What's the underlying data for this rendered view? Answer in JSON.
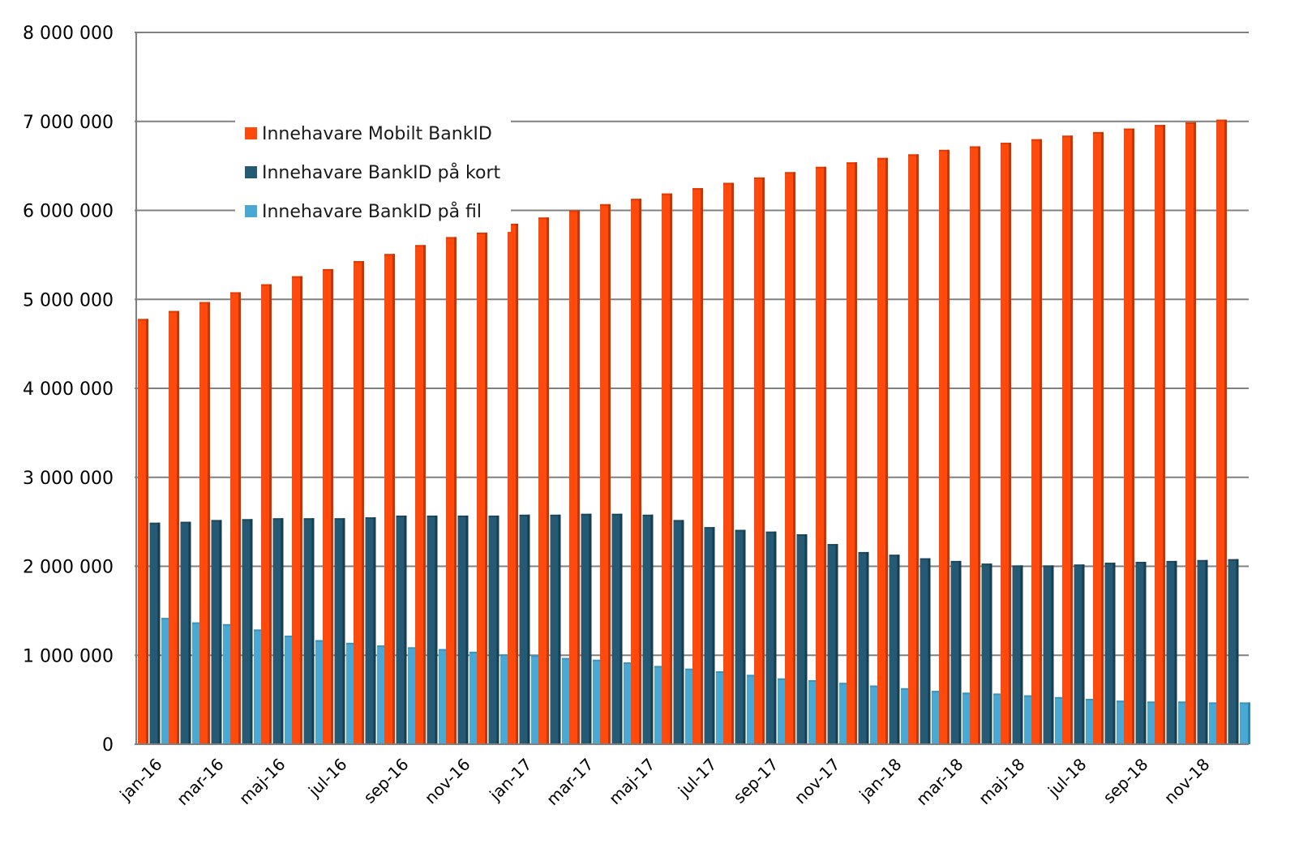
{
  "chart_data": {
    "type": "bar",
    "title": "",
    "xlabel": "",
    "ylabel": "",
    "ylim": [
      0,
      8000000
    ],
    "y_ticks": [
      "0",
      "1 000 000",
      "2 000 000",
      "3 000 000",
      "4 000 000",
      "5 000 000",
      "6 000 000",
      "7 000 000",
      "8 000 000"
    ],
    "y_tick_values": [
      0,
      1000000,
      2000000,
      3000000,
      4000000,
      5000000,
      6000000,
      7000000,
      8000000
    ],
    "grid": true,
    "legend_position": "top-left",
    "categories": [
      "jan-16",
      "feb-16",
      "mar-16",
      "apr-16",
      "maj-16",
      "jun-16",
      "jul-16",
      "aug-16",
      "sep-16",
      "okt-16",
      "nov-16",
      "dec-16",
      "jan-17",
      "feb-17",
      "mar-17",
      "apr-17",
      "maj-17",
      "jun-17",
      "jul-17",
      "aug-17",
      "sep-17",
      "okt-17",
      "nov-17",
      "dec-17",
      "jan-18",
      "feb-18",
      "mar-18",
      "apr-18",
      "maj-18",
      "jun-18",
      "jul-18",
      "aug-18",
      "sep-18",
      "okt-18",
      "nov-18",
      "dec-18"
    ],
    "x_tick_labels": [
      "jan-16",
      "mar-16",
      "maj-16",
      "jul-16",
      "sep-16",
      "nov-16",
      "jan-17",
      "mar-17",
      "maj-17",
      "jul-17",
      "sep-17",
      "nov-17",
      "jan-18",
      "mar-18",
      "maj-18",
      "jul-18",
      "sep-18",
      "nov-18"
    ],
    "series": [
      {
        "name": "Innehavare Mobilt BankID",
        "color": "#fe4a0c",
        "values": [
          4780000,
          4870000,
          4970000,
          5080000,
          5170000,
          5260000,
          5340000,
          5430000,
          5510000,
          5610000,
          5700000,
          5750000,
          5850000,
          5920000,
          6000000,
          6070000,
          6130000,
          6190000,
          6250000,
          6310000,
          6370000,
          6430000,
          6490000,
          6540000,
          6590000,
          6630000,
          6680000,
          6720000,
          6760000,
          6800000,
          6840000,
          6880000,
          6920000,
          6960000,
          6990000,
          7020000
        ]
      },
      {
        "name": "Innehavare BankID på kort",
        "color": "#245a73",
        "values": [
          2490000,
          2500000,
          2520000,
          2530000,
          2540000,
          2540000,
          2540000,
          2550000,
          2570000,
          2570000,
          2570000,
          2570000,
          2580000,
          2580000,
          2590000,
          2590000,
          2580000,
          2520000,
          2440000,
          2410000,
          2390000,
          2360000,
          2250000,
          2160000,
          2130000,
          2090000,
          2060000,
          2030000,
          2010000,
          2010000,
          2020000,
          2040000,
          2050000,
          2060000,
          2070000,
          2080000
        ]
      },
      {
        "name": "Innehavare BankID på fil",
        "color": "#4aa8d4",
        "values": [
          1420000,
          1370000,
          1350000,
          1290000,
          1220000,
          1170000,
          1140000,
          1110000,
          1090000,
          1070000,
          1040000,
          1010000,
          1000000,
          970000,
          950000,
          920000,
          880000,
          850000,
          820000,
          780000,
          740000,
          720000,
          690000,
          660000,
          630000,
          600000,
          580000,
          570000,
          550000,
          530000,
          510000,
          490000,
          480000,
          480000,
          470000,
          470000
        ]
      }
    ]
  }
}
